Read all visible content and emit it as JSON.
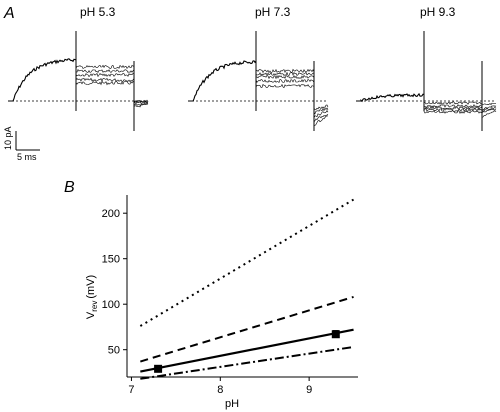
{
  "panel_a": {
    "letter": "A",
    "scale_current": "10 pA",
    "scale_time": "5 ms"
  },
  "chart_data": [
    {
      "type": "line",
      "panel": "A",
      "description_free": true,
      "traces": [
        {
          "title": "pH 5.3",
          "step_levels": [
            18,
            21,
            26,
            30,
            34
          ],
          "tail_levels": [
            -6,
            -4,
            -2,
            -1,
            0
          ],
          "pulse_level": 42,
          "noise": 1.6
        },
        {
          "title": "pH 7.3",
          "step_levels": [
            15,
            20,
            24,
            27,
            30
          ],
          "tail_levels": [
            -24,
            -20,
            -16,
            -12,
            -8
          ],
          "pulse_level": 40,
          "noise": 1.6
        },
        {
          "title": "pH 9.3",
          "step_levels": [
            -2,
            -5,
            -7,
            -9,
            -11
          ],
          "tail_levels": [
            -4,
            -8,
            -10,
            -12,
            -16
          ],
          "pulse_level": 6,
          "noise": 1.3
        }
      ]
    },
    {
      "type": "line",
      "panel": "B",
      "letter": "B",
      "xlabel": "pH",
      "ylabel_main": "V",
      "ylabel_sub": "rev",
      "ylabel_unit": "(mV)",
      "xlim": [
        6.95,
        9.55
      ],
      "ylim": [
        20,
        220
      ],
      "xticks": [
        7,
        8,
        9
      ],
      "yticks": [
        50,
        100,
        150,
        200
      ],
      "series": [
        {
          "style": "dotted",
          "x": [
            7.1,
            9.5
          ],
          "y": [
            76,
            215
          ]
        },
        {
          "style": "dashed",
          "x": [
            7.1,
            9.5
          ],
          "y": [
            37,
            108
          ]
        },
        {
          "style": "solid",
          "x": [
            7.1,
            9.5
          ],
          "y": [
            26,
            72
          ]
        },
        {
          "style": "dashdot",
          "x": [
            7.1,
            9.5
          ],
          "y": [
            18,
            53
          ]
        },
        {
          "style": "markers",
          "x": [
            7.3,
            9.3
          ],
          "y": [
            29,
            67
          ],
          "yerr": [
            2,
            4
          ]
        }
      ]
    }
  ]
}
